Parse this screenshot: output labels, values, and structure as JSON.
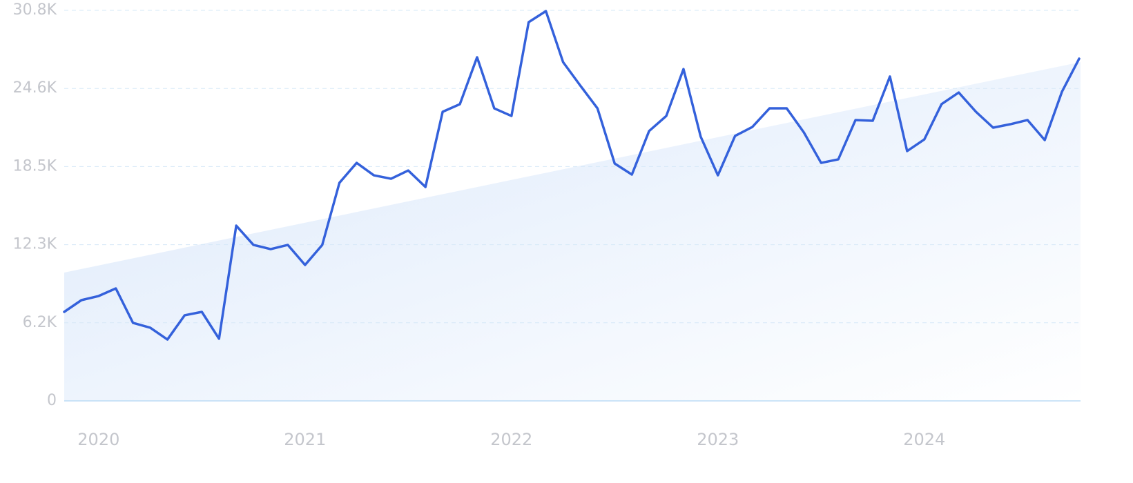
{
  "chart_data": {
    "type": "line",
    "categories": [
      null,
      null,
      "2020",
      null,
      null,
      null,
      null,
      null,
      null,
      null,
      null,
      null,
      null,
      null,
      "2021",
      null,
      null,
      null,
      null,
      null,
      null,
      null,
      null,
      null,
      null,
      null,
      "2022",
      null,
      null,
      null,
      null,
      null,
      null,
      null,
      null,
      null,
      null,
      null,
      "2023",
      null,
      null,
      null,
      null,
      null,
      null,
      null,
      null,
      null,
      null,
      null,
      "2024",
      null,
      null,
      null,
      null,
      null,
      null,
      null,
      null,
      null
    ],
    "series": [
      {
        "color": "#3461db",
        "values": [
          7020,
          7945,
          8270,
          8870,
          6150,
          5770,
          4840,
          6750,
          7020,
          4900,
          13820,
          12300,
          11970,
          12300,
          10720,
          12300,
          17200,
          18770,
          17790,
          17520,
          18170,
          16870,
          22800,
          23400,
          27100,
          23070,
          22470,
          29870,
          30740,
          26720,
          24870,
          23070,
          18720,
          17850,
          21280,
          22470,
          26170,
          20840,
          17790,
          20900,
          21600,
          23070,
          23070,
          21170,
          18770,
          19050,
          22150,
          22090,
          25580,
          19700,
          20620,
          23400,
          24320,
          22800,
          21550,
          21820,
          22150,
          20570,
          24380,
          26990
        ]
      }
    ],
    "trendline": [
      10120,
      26720
    ],
    "ylim": [
      0,
      30800
    ],
    "yticks": [
      0,
      {
        "value": 6160,
        "label": "6.2K"
      },
      {
        "value": 12320,
        "label": "12.3K"
      },
      {
        "value": 18480,
        "label": "18.5K"
      },
      {
        "value": 24640,
        "label": "24.6K"
      },
      {
        "value": 30800,
        "label": "30.8K"
      }
    ],
    "grid": true
  }
}
